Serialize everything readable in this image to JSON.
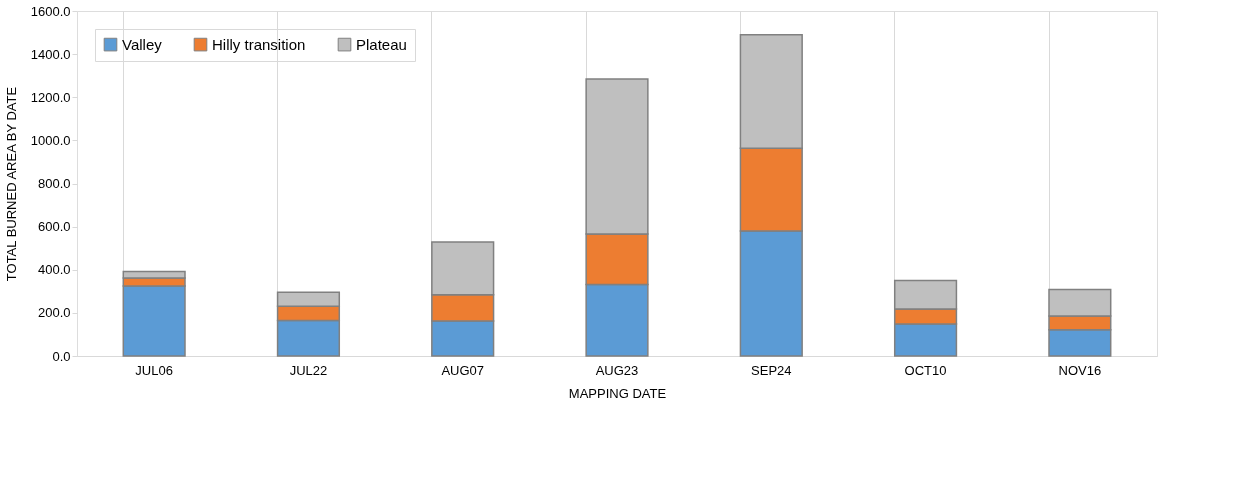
{
  "chart_data": {
    "type": "bar",
    "stacked": true,
    "xlabel": "MAPPING DATE",
    "ylabel": "TOTAL BURNED AREA BY DATE",
    "categories": [
      "JUL06",
      "JUL22",
      "AUG07",
      "AUG23",
      "SEP24",
      "OCT10",
      "NOV16"
    ],
    "series": [
      {
        "name": "Valley",
        "color": "#5b9bd5",
        "values": [
          325,
          165,
          162,
          332,
          580,
          148,
          122
        ]
      },
      {
        "name": "Hilly transition",
        "color": "#ed7d31",
        "values": [
          37,
          66,
          122,
          234,
          383,
          70,
          63
        ]
      },
      {
        "name": "Plateau",
        "color": "#bfbfbf",
        "values": [
          30,
          65,
          245,
          719,
          527,
          132,
          123
        ]
      }
    ],
    "ylim": [
      0,
      1600
    ],
    "yticks": [
      {
        "value": 0,
        "label": "0.0"
      },
      {
        "value": 200,
        "label": "200.0"
      },
      {
        "value": 400,
        "label": "400.0"
      },
      {
        "value": 600,
        "label": "600.0"
      },
      {
        "value": 800,
        "label": "800.0"
      },
      {
        "value": 1000,
        "label": "1000.0"
      },
      {
        "value": 1200,
        "label": "1200.0"
      },
      {
        "value": 1400,
        "label": "1400.0"
      },
      {
        "value": 1600,
        "label": "1600.0"
      }
    ],
    "grid": "x",
    "legend": "top left"
  }
}
